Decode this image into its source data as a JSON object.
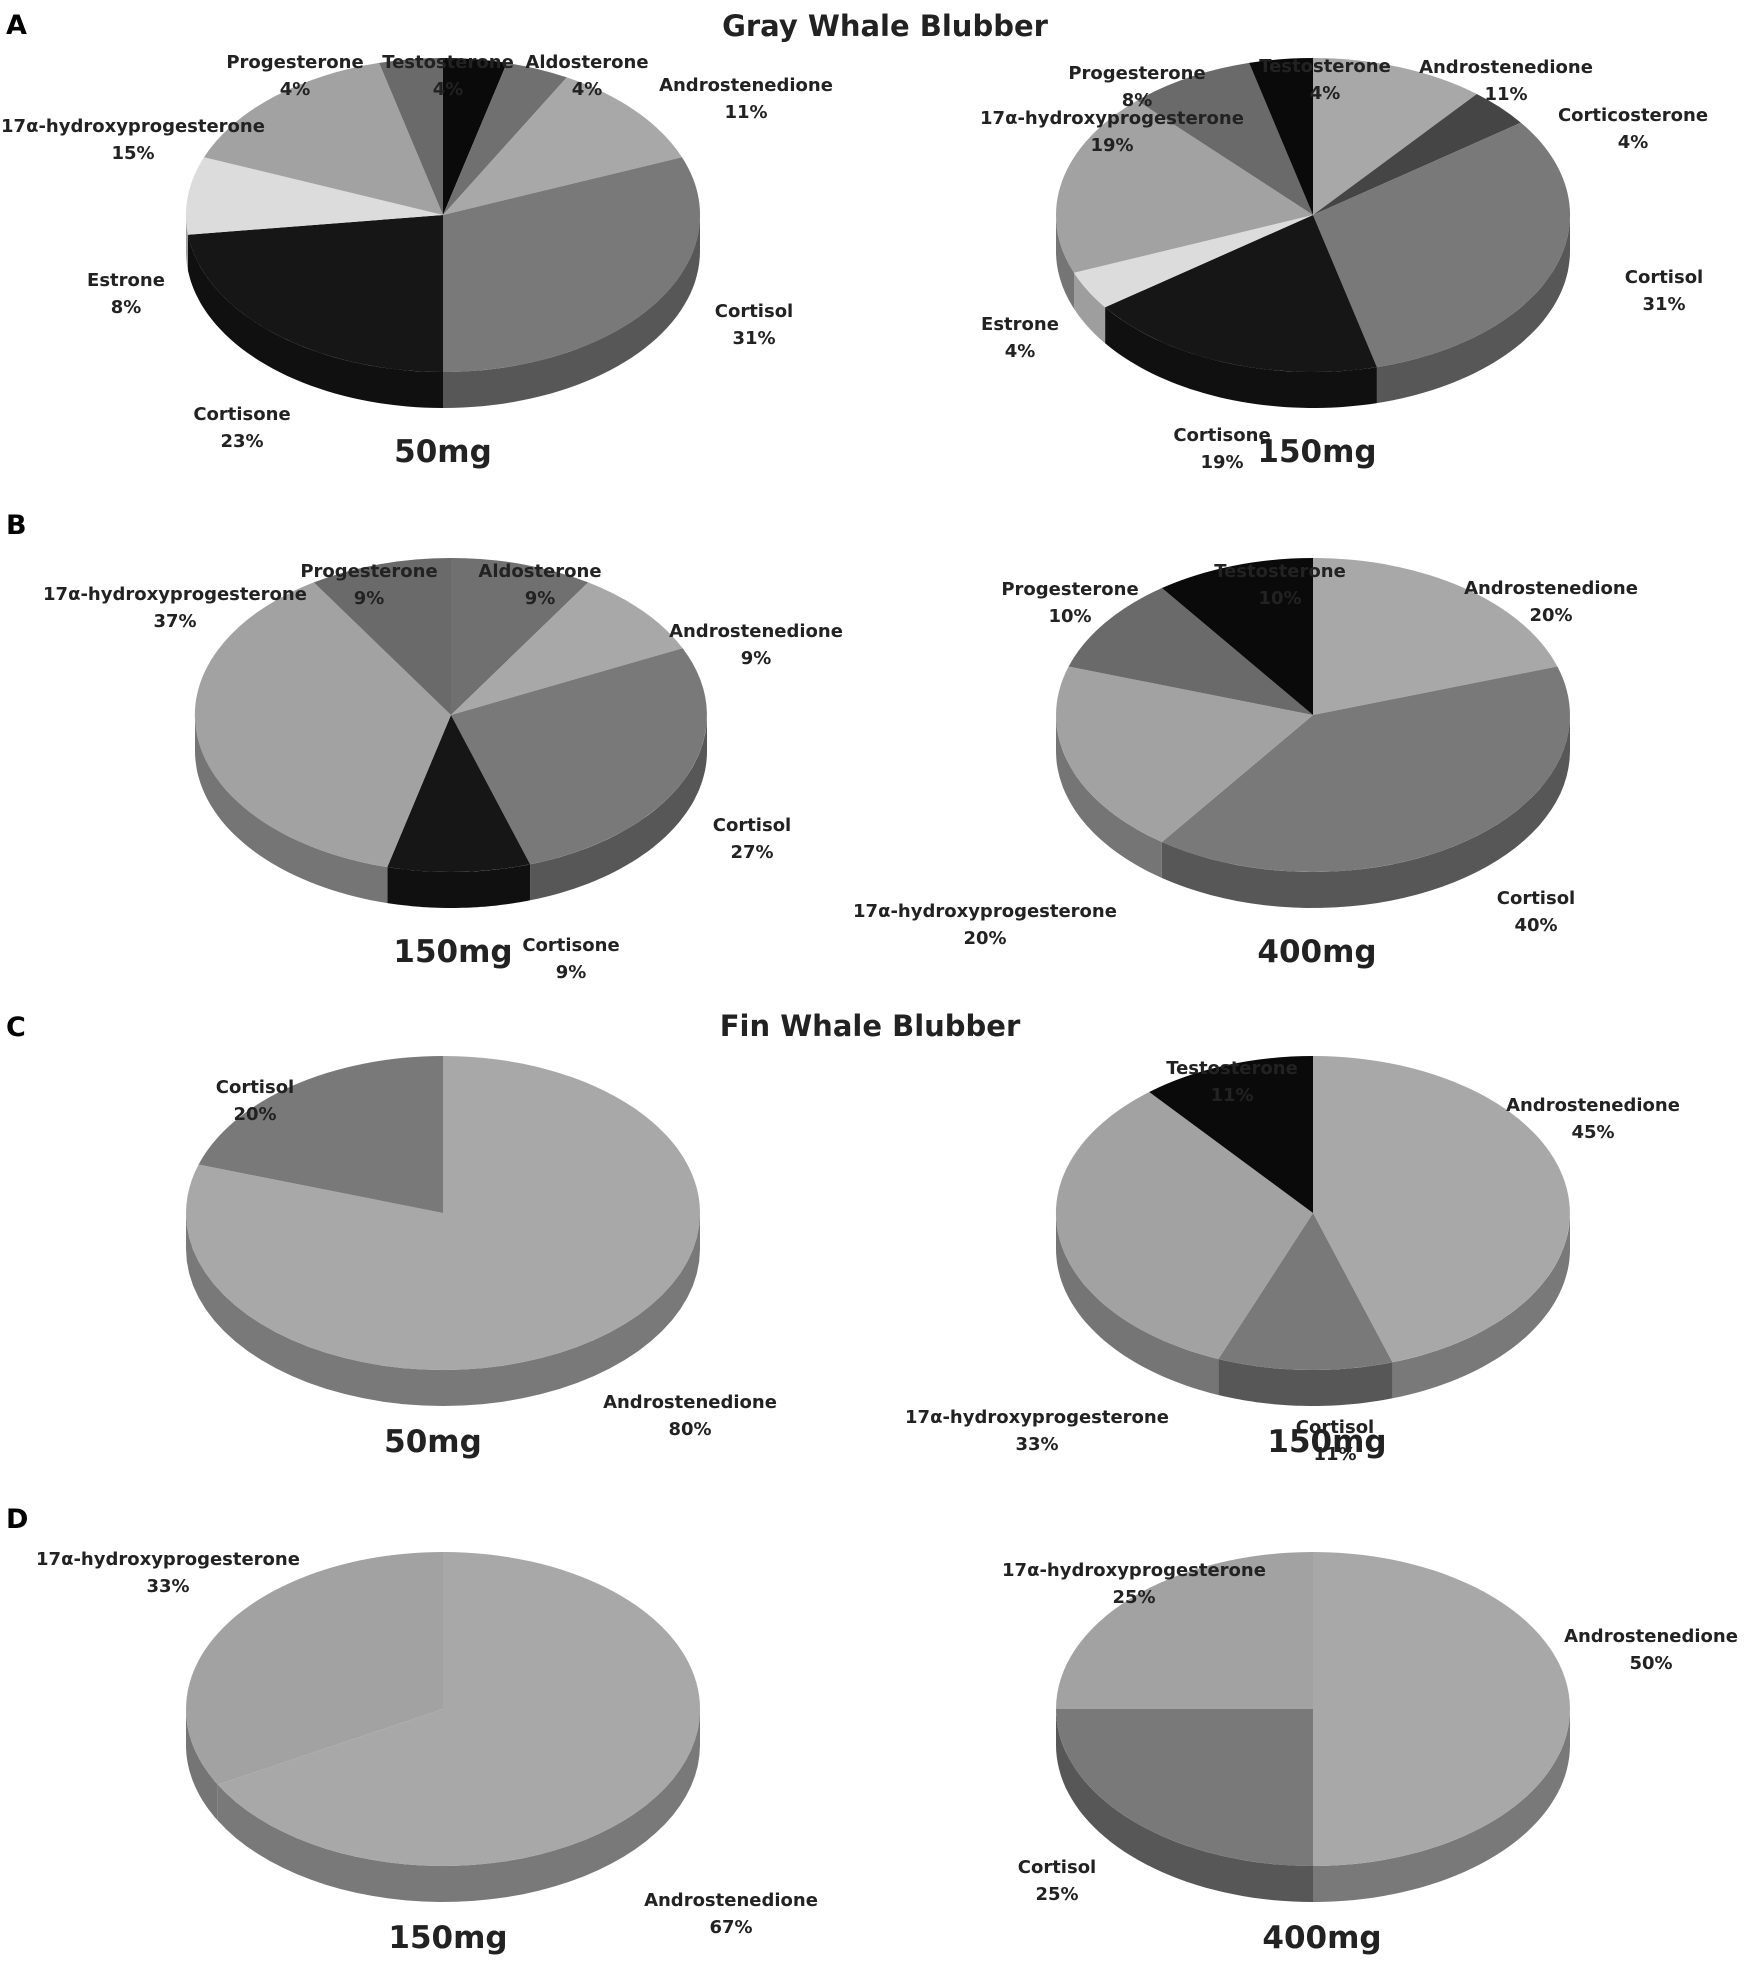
{
  "panels": [
    {
      "letter": "A",
      "title": "Gray Whale Blubber"
    },
    {
      "letter": "B",
      "title": ""
    },
    {
      "letter": "C",
      "title": "Fin Whale Blubber"
    },
    {
      "letter": "D",
      "title": ""
    }
  ],
  "colors": {
    "Testosterone": "#0a0a0a",
    "Aldosterone": "#707070",
    "Androstenedione": "#a8a8a8",
    "Corticosterone": "#454545",
    "Cortisol": "#797979",
    "Cortisone": "#161616",
    "Estrone": "#dcdcdc",
    "17α-hydroxyprogesterone": "#a2a2a2",
    "Progesterone": "#6a6a6a"
  },
  "chart_data": [
    {
      "type": "pie",
      "panel": "A",
      "title": "50mg",
      "slices": [
        {
          "label": "Testosterone",
          "value": 4
        },
        {
          "label": "Aldosterone",
          "value": 4
        },
        {
          "label": "Androstenedione",
          "value": 11
        },
        {
          "label": "Cortisol",
          "value": 31
        },
        {
          "label": "Cortisone",
          "value": 23
        },
        {
          "label": "Estrone",
          "value": 8
        },
        {
          "label": "17α-hydroxyprogesterone",
          "value": 15
        },
        {
          "label": "Progesterone",
          "value": 4
        }
      ]
    },
    {
      "type": "pie",
      "panel": "A",
      "title": "150mg",
      "slices": [
        {
          "label": "Androstenedione",
          "value": 11
        },
        {
          "label": "Corticosterone",
          "value": 4
        },
        {
          "label": "Cortisol",
          "value": 31
        },
        {
          "label": "Cortisone",
          "value": 19
        },
        {
          "label": "Estrone",
          "value": 4
        },
        {
          "label": "17α-hydroxyprogesterone",
          "value": 19
        },
        {
          "label": "Progesterone",
          "value": 8
        },
        {
          "label": "Testosterone",
          "value": 4
        }
      ]
    },
    {
      "type": "pie",
      "panel": "B",
      "title": "150mg",
      "slices": [
        {
          "label": "Aldosterone",
          "value": 9
        },
        {
          "label": "Androstenedione",
          "value": 9
        },
        {
          "label": "Cortisol",
          "value": 27
        },
        {
          "label": "Cortisone",
          "value": 9
        },
        {
          "label": "17α-hydroxyprogesterone",
          "value": 37
        },
        {
          "label": "Progesterone",
          "value": 9
        }
      ]
    },
    {
      "type": "pie",
      "panel": "B",
      "title": "400mg",
      "slices": [
        {
          "label": "Androstenedione",
          "value": 20
        },
        {
          "label": "Cortisol",
          "value": 40
        },
        {
          "label": "17α-hydroxyprogesterone",
          "value": 20
        },
        {
          "label": "Progesterone",
          "value": 10
        },
        {
          "label": "Testosterone",
          "value": 10
        }
      ]
    },
    {
      "type": "pie",
      "panel": "C",
      "title": "50mg",
      "slices": [
        {
          "label": "Androstenedione",
          "value": 80
        },
        {
          "label": "Cortisol",
          "value": 20
        }
      ]
    },
    {
      "type": "pie",
      "panel": "C",
      "title": "150mg",
      "slices": [
        {
          "label": "Androstenedione",
          "value": 45
        },
        {
          "label": "Cortisol",
          "value": 11
        },
        {
          "label": "17α-hydroxyprogesterone",
          "value": 33
        },
        {
          "label": "Testosterone",
          "value": 11
        }
      ]
    },
    {
      "type": "pie",
      "panel": "D",
      "title": "150mg",
      "slices": [
        {
          "label": "Androstenedione",
          "value": 67
        },
        {
          "label": "17α-hydroxyprogesterone",
          "value": 33
        }
      ]
    },
    {
      "type": "pie",
      "panel": "D",
      "title": "400mg",
      "slices": [
        {
          "label": "Androstenedione",
          "value": 50
        },
        {
          "label": "Cortisol",
          "value": 25
        },
        {
          "label": "17α-hydroxyprogesterone",
          "value": 25
        }
      ]
    }
  ]
}
